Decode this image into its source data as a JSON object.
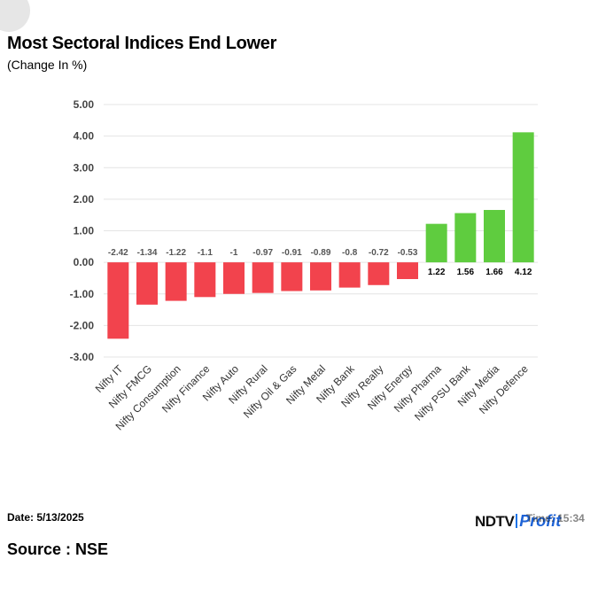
{
  "header": {
    "title": "Most Sectoral Indices End Lower",
    "subtitle": "(Change In %)"
  },
  "footer": {
    "date": "Date: 5/13/2025",
    "source": "Source : NSE",
    "logo_ndtv": "NDTV",
    "logo_profit": "Profit",
    "time_overlap": "Time: 15:34"
  },
  "colors": {
    "negative": "#f2434d",
    "positive": "#5fcc3f",
    "grid": "#e4e4e4",
    "label": "#555555"
  },
  "chart_data": {
    "type": "bar",
    "title": "Most Sectoral Indices End Lower",
    "subtitle": "(Change In %)",
    "xlabel": "",
    "ylabel": "",
    "ylim": [
      -3,
      5
    ],
    "yticks": [
      "5.00",
      "4.00",
      "3.00",
      "2.00",
      "1.00",
      "0.00",
      "-1.00",
      "-2.00",
      "-3.00"
    ],
    "grid": true,
    "categories": [
      "Nifty IT",
      "Nifty FMCG",
      "Nifty Consumption",
      "Nifty Finance",
      "Nifty Auto",
      "Nifty Rural",
      "Nifty Oil & Gas",
      "Nifty Metal",
      "Nifty Bank",
      "Nifty Realty",
      "Nifty Energy",
      "Nifty Pharma",
      "Nifty PSU Bank",
      "Nifty Media",
      "Nifty Defence"
    ],
    "values": [
      -2.42,
      -1.34,
      -1.22,
      -1.1,
      -1,
      -0.97,
      -0.91,
      -0.89,
      -0.8,
      -0.72,
      -0.53,
      1.22,
      1.56,
      1.66,
      4.12
    ],
    "data_labels": [
      "-2.42",
      "-1.34",
      "-1.22",
      "-1.1",
      "-1",
      "-0.97",
      "-0.91",
      "-0.89",
      "-0.8",
      "-0.72",
      "-0.53",
      "1.22",
      "1.56",
      "1.66",
      "4.12"
    ]
  }
}
